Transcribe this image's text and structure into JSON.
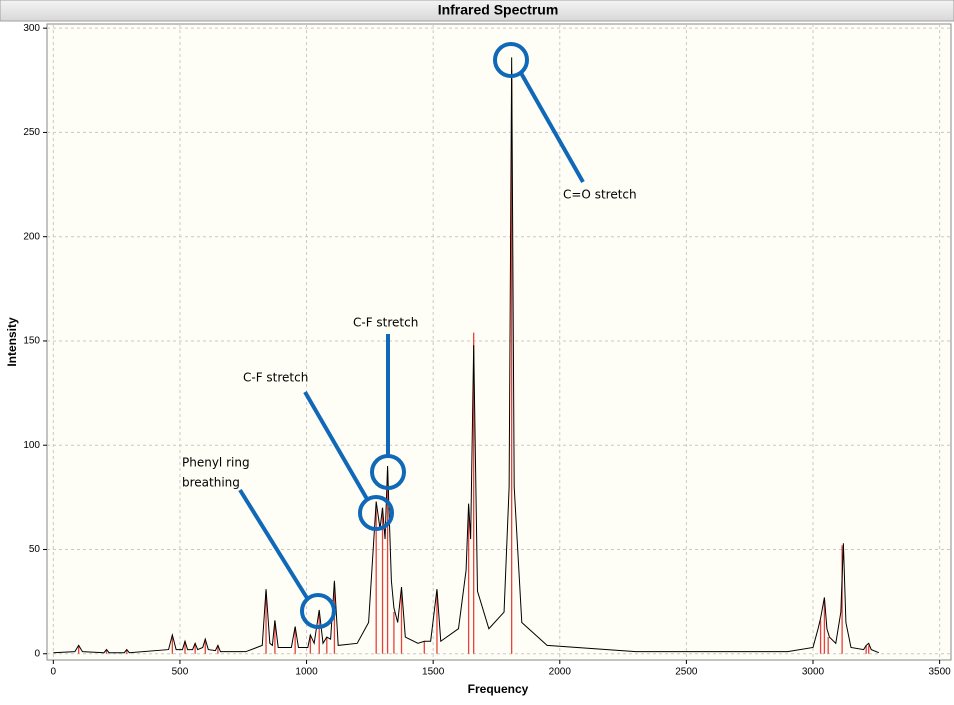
{
  "chart_data": {
    "type": "line",
    "title": "Infrared Spectrum",
    "x_label": "Frequency",
    "y_label": "Intensity",
    "xlim": [
      -25,
      3545
    ],
    "ylim": [
      -3,
      302
    ],
    "xticks": [
      0,
      500,
      1000,
      1500,
      2000,
      2500,
      3000,
      3500
    ],
    "yticks": [
      0,
      50,
      100,
      150,
      200,
      250,
      300
    ],
    "grid": true,
    "series": [
      {
        "style": "stick",
        "color": "#e8403a",
        "x": [
          100,
          210,
          290,
          470,
          520,
          560,
          600,
          650,
          840,
          875,
          955,
          1015,
          1050,
          1080,
          1110,
          1275,
          1300,
          1320,
          1345,
          1375,
          1465,
          1515,
          1640,
          1660,
          1810,
          3030,
          3045,
          3060,
          3115,
          3210,
          3220
        ],
        "values": [
          4,
          2,
          2,
          9,
          6,
          5,
          7,
          4,
          30,
          16,
          13,
          9,
          20,
          8,
          34,
          72,
          70,
          88,
          20,
          30,
          6,
          30,
          70,
          154,
          280,
          16,
          26,
          8,
          52,
          4,
          4
        ]
      },
      {
        "style": "line",
        "color": "#000000",
        "x": [
          0,
          85,
          100,
          115,
          200,
          210,
          220,
          280,
          290,
          300,
          455,
          470,
          485,
          510,
          520,
          530,
          550,
          560,
          570,
          590,
          600,
          612,
          640,
          650,
          660,
          760,
          825,
          840,
          855,
          865,
          875,
          888,
          940,
          955,
          968,
          1005,
          1015,
          1030,
          1050,
          1065,
          1080,
          1095,
          1110,
          1125,
          1200,
          1245,
          1275,
          1290,
          1300,
          1310,
          1320,
          1335,
          1345,
          1360,
          1375,
          1390,
          1440,
          1465,
          1490,
          1515,
          1530,
          1600,
          1630,
          1640,
          1648,
          1660,
          1675,
          1720,
          1780,
          1800,
          1810,
          1820,
          1850,
          1950,
          2300,
          2900,
          3000,
          3020,
          3030,
          3045,
          3055,
          3065,
          3090,
          3110,
          3120,
          3130,
          3150,
          3200,
          3210,
          3220,
          3230,
          3260
        ],
        "values": [
          0.5,
          1,
          4,
          1,
          0.5,
          2,
          0.5,
          0.5,
          2,
          0.5,
          2,
          9,
          2,
          2,
          6,
          2,
          2,
          5,
          2,
          3,
          7,
          2,
          1.5,
          4,
          1,
          1,
          4,
          31,
          5,
          4,
          16,
          3,
          3,
          13,
          3,
          3,
          9,
          5,
          21,
          5,
          8,
          7,
          35,
          4,
          5,
          15,
          73,
          60,
          70,
          55,
          90,
          35,
          22,
          15,
          32,
          8,
          5,
          6,
          6,
          31,
          6,
          12,
          40,
          72,
          55,
          148,
          30,
          12,
          20,
          80,
          286,
          80,
          15,
          4,
          1,
          1,
          3,
          12,
          17,
          27,
          12,
          8,
          5,
          20,
          53,
          15,
          3,
          2,
          4,
          5,
          2,
          0.5
        ]
      }
    ],
    "annotations": [
      {
        "lines": [
          "C=O stretch"
        ]
      },
      {
        "lines": [
          "C-F stretch"
        ]
      },
      {
        "lines": [
          "C-F stretch"
        ]
      },
      {
        "lines": [
          "Phenyl ring",
          "breathing"
        ]
      }
    ]
  }
}
